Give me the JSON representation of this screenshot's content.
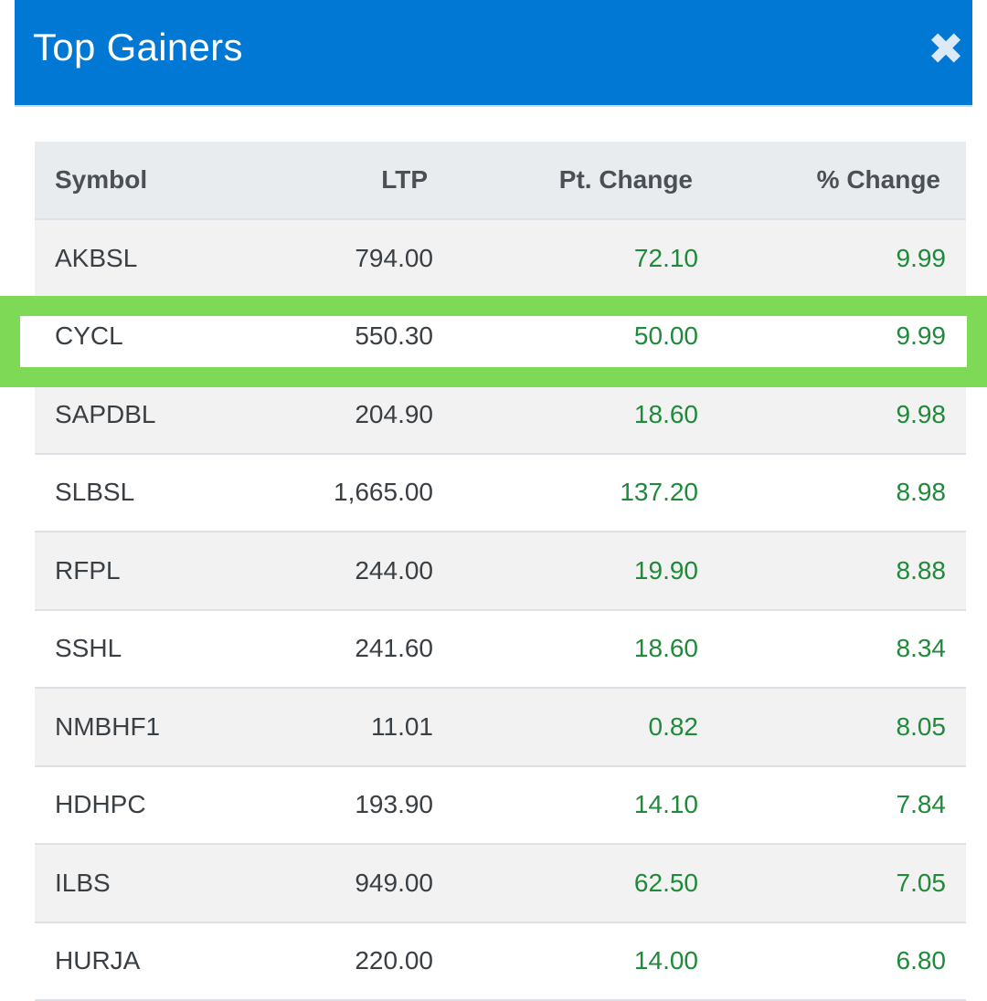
{
  "header": {
    "title": "Top Gainers",
    "close_label": "✖"
  },
  "table": {
    "columns": [
      "Symbol",
      "LTP",
      "Pt. Change",
      "% Change"
    ],
    "rows": [
      {
        "symbol": "AKBSL",
        "ltp": "794.00",
        "pt_change": "72.10",
        "pct_change": "9.99"
      },
      {
        "symbol": "CYCL",
        "ltp": "550.30",
        "pt_change": "50.00",
        "pct_change": "9.99"
      },
      {
        "symbol": "SAPDBL",
        "ltp": "204.90",
        "pt_change": "18.60",
        "pct_change": "9.98"
      },
      {
        "symbol": "SLBSL",
        "ltp": "1,665.00",
        "pt_change": "137.20",
        "pct_change": "8.98"
      },
      {
        "symbol": "RFPL",
        "ltp": "244.00",
        "pt_change": "19.90",
        "pct_change": "8.88"
      },
      {
        "symbol": "SSHL",
        "ltp": "241.60",
        "pt_change": "18.60",
        "pct_change": "8.34"
      },
      {
        "symbol": "NMBHF1",
        "ltp": "11.01",
        "pt_change": "0.82",
        "pct_change": "8.05"
      },
      {
        "symbol": "HDHPC",
        "ltp": "193.90",
        "pt_change": "14.10",
        "pct_change": "7.84"
      },
      {
        "symbol": "ILBS",
        "ltp": "949.00",
        "pt_change": "62.50",
        "pct_change": "7.05"
      },
      {
        "symbol": "HURJA",
        "ltp": "220.00",
        "pt_change": "14.00",
        "pct_change": "6.80"
      }
    ]
  },
  "highlighted_row_symbol": "CYCL",
  "colors": {
    "header_bg": "#0078d4",
    "gain_text": "#1f8a3a",
    "highlight_border": "#7ed957"
  }
}
